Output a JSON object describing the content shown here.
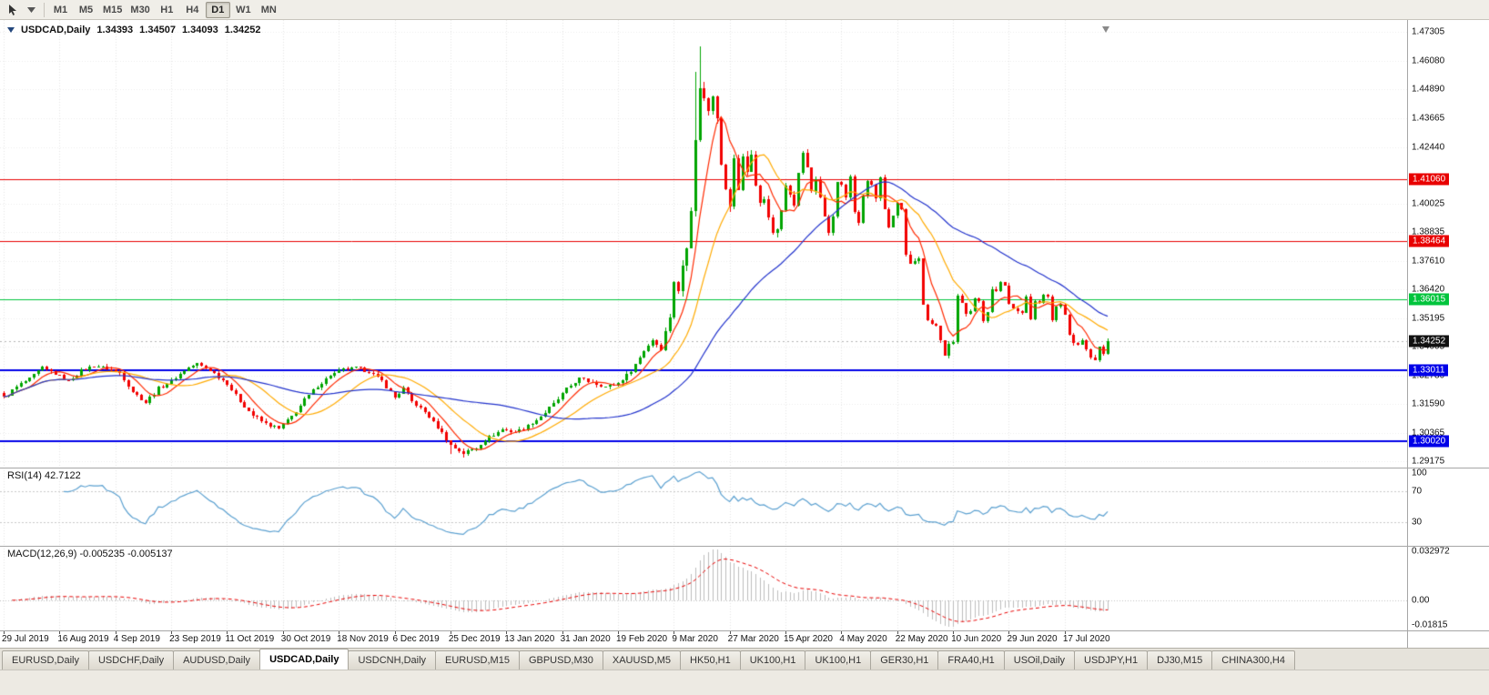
{
  "toolbar": {
    "timeframes": [
      "M1",
      "M5",
      "M15",
      "M30",
      "H1",
      "H4",
      "D1",
      "W1",
      "MN"
    ],
    "active_timeframe": "D1"
  },
  "chart": {
    "title": {
      "symbol": "USDCAD,Daily",
      "open": "1.34393",
      "high": "1.34507",
      "low": "1.34093",
      "close": "1.34252"
    },
    "rsi_label": "RSI(14)",
    "rsi_value": "42.7122",
    "macd_label": "MACD(12,26,9)",
    "macd_value": "-0.005235 -0.005137"
  },
  "chart_data": {
    "type": "candlestick",
    "symbol": "USDCAD",
    "timeframe": "Daily",
    "title": "USDCAD,Daily",
    "ohlc": {
      "open": 1.34393,
      "high": 1.34507,
      "low": 1.34093,
      "close": 1.34252
    },
    "price_axis": {
      "min": 1.289,
      "max": 1.478,
      "labels": [
        "1.47305",
        "1.46080",
        "1.44890",
        "1.43665",
        "1.42440",
        "1.40025",
        "1.38835",
        "1.37610",
        "1.36420",
        "1.35195",
        "1.34005",
        "1.32780",
        "1.31590",
        "1.30365",
        "1.29175"
      ]
    },
    "levels": [
      {
        "price": 1.4106,
        "label": "1.41060",
        "color": "#e80000",
        "width": 1,
        "type": "resistance"
      },
      {
        "price": 1.38464,
        "label": "1.38464",
        "color": "#e80000",
        "width": 1,
        "type": "resistance"
      },
      {
        "price": 1.36015,
        "label": "1.36015",
        "color": "#00c43c",
        "width": 1,
        "type": "level"
      },
      {
        "price": 1.33011,
        "label": "1.33011",
        "color": "#0000e8",
        "width": 2,
        "type": "support"
      },
      {
        "price": 1.3002,
        "label": "1.30020",
        "color": "#0000e8",
        "width": 2,
        "type": "support"
      }
    ],
    "current_price": {
      "value": 1.34252,
      "label": "1.34252"
    },
    "colors": {
      "up": "#00a400",
      "down": "#f20000"
    },
    "num_candles": 258,
    "anchors": [
      [
        0,
        1.3185
      ],
      [
        3,
        1.323
      ],
      [
        6,
        1.3265
      ],
      [
        9,
        1.331
      ],
      [
        12,
        1.3285
      ],
      [
        15,
        1.3255
      ],
      [
        18,
        1.33
      ],
      [
        21,
        1.332
      ],
      [
        24,
        1.331
      ],
      [
        27,
        1.329
      ],
      [
        30,
        1.321
      ],
      [
        33,
        1.3165
      ],
      [
        36,
        1.3225
      ],
      [
        39,
        1.3255
      ],
      [
        42,
        1.33
      ],
      [
        45,
        1.333
      ],
      [
        48,
        1.33
      ],
      [
        52,
        1.3245
      ],
      [
        55,
        1.317
      ],
      [
        58,
        1.311
      ],
      [
        61,
        1.3075
      ],
      [
        64,
        1.3055
      ],
      [
        67,
        1.3105
      ],
      [
        70,
        1.3175
      ],
      [
        73,
        1.3235
      ],
      [
        76,
        1.328
      ],
      [
        79,
        1.3305
      ],
      [
        82,
        1.331
      ],
      [
        85,
        1.3295
      ],
      [
        88,
        1.3255
      ],
      [
        91,
        1.3185
      ],
      [
        93,
        1.3225
      ],
      [
        95,
        1.317
      ],
      [
        98,
        1.3125
      ],
      [
        101,
        1.306
      ],
      [
        104,
        1.2985
      ],
      [
        107,
        1.295
      ],
      [
        110,
        1.2975
      ],
      [
        113,
        1.302
      ],
      [
        116,
        1.305
      ],
      [
        119,
        1.304
      ],
      [
        122,
        1.3065
      ],
      [
        125,
        1.3105
      ],
      [
        128,
        1.316
      ],
      [
        131,
        1.322
      ],
      [
        134,
        1.3265
      ],
      [
        137,
        1.325
      ],
      [
        140,
        1.323
      ],
      [
        143,
        1.3245
      ],
      [
        146,
        1.33
      ],
      [
        149,
        1.3385
      ],
      [
        151,
        1.343
      ],
      [
        153,
        1.339
      ],
      [
        155,
        1.353
      ],
      [
        156,
        1.368
      ],
      [
        157,
        1.363
      ],
      [
        158,
        1.3745
      ],
      [
        159,
        1.383
      ],
      [
        160,
        1.3985
      ],
      [
        161,
        1.4265
      ],
      [
        162,
        1.45
      ],
      [
        163,
        1.4445
      ],
      [
        164,
        1.44
      ],
      [
        165,
        1.447
      ],
      [
        166,
        1.4375
      ],
      [
        167,
        1.418
      ],
      [
        168,
        1.406
      ],
      [
        169,
        1.3995
      ],
      [
        170,
        1.419
      ],
      [
        171,
        1.4065
      ],
      [
        172,
        1.421
      ],
      [
        173,
        1.414
      ],
      [
        174,
        1.4205
      ],
      [
        175,
        1.4085
      ],
      [
        176,
        1.402
      ],
      [
        177,
        1.401
      ],
      [
        178,
        1.395
      ],
      [
        179,
        1.387
      ],
      [
        180,
        1.3895
      ],
      [
        181,
        1.3985
      ],
      [
        182,
        1.409
      ],
      [
        183,
        1.404
      ],
      [
        184,
        1.4
      ],
      [
        185,
        1.413
      ],
      [
        186,
        1.422
      ],
      [
        187,
        1.416
      ],
      [
        188,
        1.406
      ],
      [
        189,
        1.41
      ],
      [
        190,
        1.403
      ],
      [
        191,
        1.395
      ],
      [
        192,
        1.388
      ],
      [
        193,
        1.3945
      ],
      [
        194,
        1.409
      ],
      [
        195,
        1.408
      ],
      [
        196,
        1.403
      ],
      [
        197,
        1.412
      ],
      [
        198,
        1.3975
      ],
      [
        199,
        1.392
      ],
      [
        200,
        1.404
      ],
      [
        201,
        1.41
      ],
      [
        202,
        1.408
      ],
      [
        203,
        1.403
      ],
      [
        204,
        1.411
      ],
      [
        205,
        1.3985
      ],
      [
        206,
        1.3905
      ],
      [
        207,
        1.395
      ],
      [
        208,
        1.4
      ],
      [
        209,
        1.3975
      ],
      [
        210,
        1.3785
      ],
      [
        211,
        1.3755
      ],
      [
        212,
        1.377
      ],
      [
        213,
        1.378
      ],
      [
        214,
        1.3575
      ],
      [
        215,
        1.352
      ],
      [
        216,
        1.35
      ],
      [
        217,
        1.349
      ],
      [
        218,
        1.3425
      ],
      [
        219,
        1.3365
      ],
      [
        220,
        1.341
      ],
      [
        221,
        1.3415
      ],
      [
        222,
        1.3615
      ],
      [
        223,
        1.359
      ],
      [
        224,
        1.3545
      ],
      [
        225,
        1.355
      ],
      [
        226,
        1.36
      ],
      [
        227,
        1.3595
      ],
      [
        228,
        1.3515
      ],
      [
        229,
        1.355
      ],
      [
        230,
        1.364
      ],
      [
        231,
        1.363
      ],
      [
        232,
        1.3675
      ],
      [
        233,
        1.366
      ],
      [
        234,
        1.358
      ],
      [
        235,
        1.357
      ],
      [
        236,
        1.355
      ],
      [
        237,
        1.3545
      ],
      [
        238,
        1.361
      ],
      [
        239,
        1.3515
      ],
      [
        240,
        1.359
      ],
      [
        241,
        1.3585
      ],
      [
        242,
        1.362
      ],
      [
        243,
        1.361
      ],
      [
        244,
        1.3515
      ],
      [
        245,
        1.3565
      ],
      [
        246,
        1.358
      ],
      [
        247,
        1.353
      ],
      [
        248,
        1.3455
      ],
      [
        249,
        1.341
      ],
      [
        250,
        1.3405
      ],
      [
        251,
        1.343
      ],
      [
        252,
        1.3385
      ],
      [
        253,
        1.336
      ],
      [
        254,
        1.335
      ],
      [
        255,
        1.34
      ],
      [
        256,
        1.337
      ],
      [
        257,
        1.34252
      ]
    ],
    "high_overrides": [
      [
        161,
        1.456
      ],
      [
        162,
        1.4668
      ],
      [
        163,
        1.452
      ]
    ],
    "low_overrides": [
      [
        104,
        1.2948
      ],
      [
        107,
        1.2932
      ]
    ],
    "volatility": {
      "base": 0.0022,
      "zones": [
        {
          "from": 154,
          "to": 180,
          "vol": 0.005
        },
        {
          "from": 181,
          "to": 215,
          "vol": 0.0028
        }
      ]
    },
    "moving_averages": [
      {
        "period": 7,
        "color": "#ff2a00"
      },
      {
        "period": 17,
        "color": "#ffaa00"
      },
      {
        "period": 46,
        "color": "#2233cc"
      }
    ],
    "rsi": {
      "period": 14,
      "value": 42.7122,
      "color": "#5ba0d0",
      "levels": [
        70,
        30
      ],
      "range": [
        0,
        100
      ],
      "axis_labels": [
        {
          "value": 100,
          "label": "100"
        },
        {
          "value": 70,
          "label": "70"
        },
        {
          "value": 30,
          "label": "30"
        }
      ]
    },
    "macd": {
      "fast": 12,
      "slow": 26,
      "signal": 9,
      "value": -0.005235,
      "signal_value": -0.005137,
      "histogram_color": "#bdbdbd",
      "signal_color": "#e80000",
      "range": {
        "min": -0.01815,
        "max": 0.032972
      },
      "axis_labels": [
        {
          "value": 0.032972,
          "label": "0.032972"
        },
        {
          "value": 0,
          "label": "0.00"
        },
        {
          "value": -0.01815,
          "label": "-0.01815"
        }
      ]
    },
    "date_ticks": [
      {
        "i": 0,
        "label": "29 Jul 2019"
      },
      {
        "i": 13,
        "label": "16 Aug 2019"
      },
      {
        "i": 26,
        "label": "4 Sep 2019"
      },
      {
        "i": 39,
        "label": "23 Sep 2019"
      },
      {
        "i": 52,
        "label": "11 Oct 2019"
      },
      {
        "i": 65,
        "label": "30 Oct 2019"
      },
      {
        "i": 78,
        "label": "18 Nov 2019"
      },
      {
        "i": 91,
        "label": "6 Dec 2019"
      },
      {
        "i": 104,
        "label": "25 Dec 2019"
      },
      {
        "i": 117,
        "label": "13 Jan 2020"
      },
      {
        "i": 130,
        "label": "31 Jan 2020"
      },
      {
        "i": 143,
        "label": "19 Feb 2020"
      },
      {
        "i": 156,
        "label": "9 Mar 2020"
      },
      {
        "i": 169,
        "label": "27 Mar 2020"
      },
      {
        "i": 182,
        "label": "15 Apr 2020"
      },
      {
        "i": 195,
        "label": "4 May 2020"
      },
      {
        "i": 208,
        "label": "22 May 2020"
      },
      {
        "i": 221,
        "label": "10 Jun 2020"
      },
      {
        "i": 234,
        "label": "29 Jun 2020"
      },
      {
        "i": 247,
        "label": "17 Jul 2020"
      }
    ]
  },
  "tabs": {
    "active_index": 3,
    "items": [
      "EURUSD,Daily",
      "USDCHF,Daily",
      "AUDUSD,Daily",
      "USDCAD,Daily",
      "USDCNH,Daily",
      "EURUSD,M15",
      "GBPUSD,M30",
      "XAUUSD,M5",
      "HK50,H1",
      "UK100,H1",
      "UK100,H1",
      "GER30,H1",
      "FRA40,H1",
      "USOil,Daily",
      "USDJPY,H1",
      "DJ30,M15",
      "CHINA300,H4"
    ]
  }
}
